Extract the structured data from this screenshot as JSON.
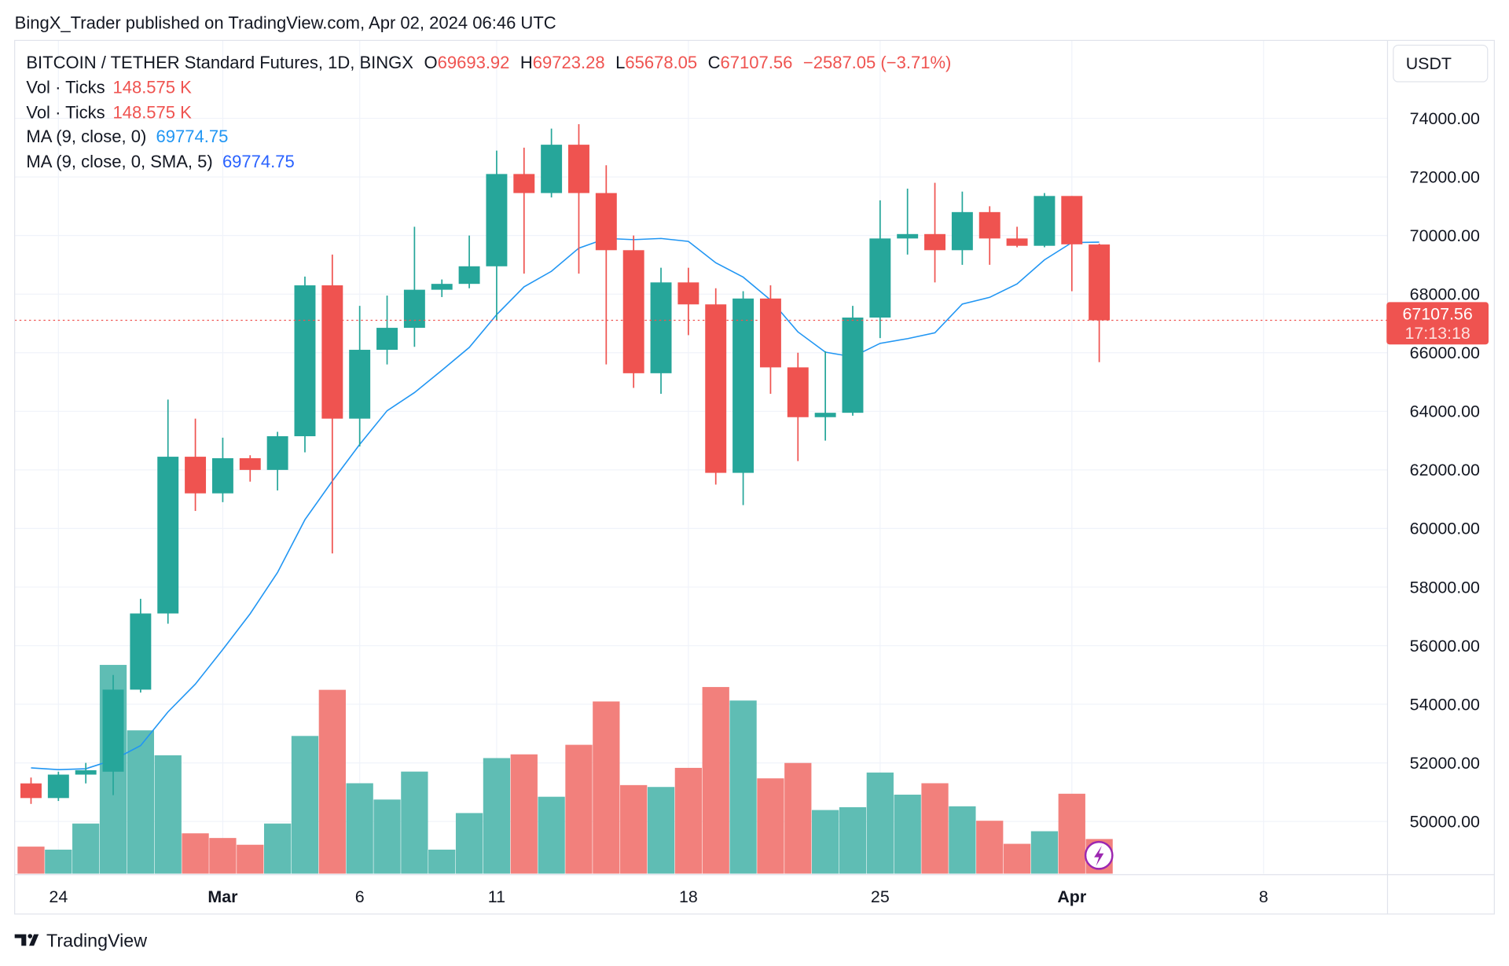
{
  "header": {
    "published": "BingX_Trader published on TradingView.com, Apr 02, 2024 06:46 UTC",
    "brand": "TradingView"
  },
  "legend": {
    "symbol": "BITCOIN / TETHER Standard Futures, 1D, BINGX",
    "o_label": "O",
    "o": "69693.92",
    "h_label": "H",
    "h": "69723.28",
    "l_label": "L",
    "l": "65678.05",
    "c_label": "C",
    "c": "67107.56",
    "change": "−2587.05 (−3.71%)",
    "vol1_label": "Vol · Ticks",
    "vol1": "148.575 K",
    "vol2_label": "Vol · Ticks",
    "vol2": "148.575 K",
    "ma1_label": "MA (9, close, 0)",
    "ma1": "69774.75",
    "ma2_label": "MA (9, close, 0, SMA, 5)",
    "ma2": "69774.75"
  },
  "price_axis": {
    "currency": "USDT",
    "last_price": "67107.56",
    "countdown": "17:13:18"
  },
  "colors": {
    "up": "#26a69a",
    "down": "#ef5350",
    "up_vol": "#5fbdb4",
    "down_vol": "#f2807c",
    "ma": "#2196f3"
  },
  "chart_data": {
    "type": "candlestick",
    "title": "BITCOIN / TETHER Standard Futures, 1D, BINGX",
    "ylim": [
      48500,
      75500
    ],
    "y_ticks": [
      "74000.00",
      "72000.00",
      "70000.00",
      "68000.00",
      "66000.00",
      "64000.00",
      "62000.00",
      "60000.00",
      "58000.00",
      "56000.00",
      "54000.00",
      "52000.00",
      "50000.00"
    ],
    "y_tick_values": [
      74000,
      72000,
      70000,
      68000,
      66000,
      64000,
      62000,
      60000,
      58000,
      56000,
      54000,
      52000,
      50000
    ],
    "x_ticks": [
      {
        "label": "24",
        "day": 1
      },
      {
        "label": "Mar",
        "day": 7
      },
      {
        "label": "6",
        "day": 12
      },
      {
        "label": "11",
        "day": 17
      },
      {
        "label": "18",
        "day": 24
      },
      {
        "label": "25",
        "day": 31
      },
      {
        "label": "Apr",
        "day": 38
      },
      {
        "label": "8",
        "day": 45
      }
    ],
    "x_start": "2024-02-23",
    "candles": [
      [
        51300,
        51500,
        50600,
        50800
      ],
      [
        50800,
        51700,
        50700,
        51600
      ],
      [
        51600,
        52000,
        51300,
        51750
      ],
      [
        51700,
        55000,
        50900,
        54500
      ],
      [
        54500,
        57600,
        54400,
        57100
      ],
      [
        57100,
        64400,
        56750,
        62450
      ],
      [
        62450,
        63750,
        60600,
        61200
      ],
      [
        61200,
        63100,
        60900,
        62400
      ],
      [
        62400,
        62500,
        61600,
        62000
      ],
      [
        62000,
        63300,
        61300,
        63150
      ],
      [
        63150,
        68600,
        62600,
        68300
      ],
      [
        68300,
        69350,
        59150,
        63750
      ],
      [
        63750,
        67600,
        62800,
        66100
      ],
      [
        66100,
        67950,
        65600,
        66850
      ],
      [
        66850,
        70300,
        66200,
        68150
      ],
      [
        68150,
        68500,
        67900,
        68350
      ],
      [
        68350,
        70000,
        68200,
        68950
      ],
      [
        68950,
        72900,
        67100,
        72100
      ],
      [
        72100,
        73000,
        68700,
        71450
      ],
      [
        71450,
        73650,
        71300,
        73100
      ],
      [
        73100,
        73800,
        68700,
        71450
      ],
      [
        71450,
        72400,
        65600,
        69500
      ],
      [
        69500,
        70000,
        64800,
        65300
      ],
      [
        65300,
        68900,
        64600,
        68400
      ],
      [
        68400,
        68900,
        66600,
        67650
      ],
      [
        67650,
        68200,
        61500,
        61900
      ],
      [
        61900,
        68100,
        60800,
        67850
      ],
      [
        67850,
        68300,
        64600,
        65500
      ],
      [
        65500,
        66000,
        62300,
        63800
      ],
      [
        63800,
        66050,
        63000,
        63950
      ],
      [
        63950,
        67600,
        63850,
        67200
      ],
      [
        67200,
        71200,
        66500,
        69900
      ],
      [
        69900,
        71600,
        69350,
        70050
      ],
      [
        70050,
        71800,
        68400,
        69500
      ],
      [
        69500,
        71500,
        69000,
        70800
      ],
      [
        70800,
        71000,
        69000,
        69900
      ],
      [
        69900,
        70300,
        69600,
        69650
      ],
      [
        69650,
        71450,
        69600,
        71350
      ],
      [
        71350,
        71350,
        68100,
        69700
      ],
      [
        69693.92,
        69723.28,
        65678.05,
        67107.56
      ]
    ],
    "volume_k": [
      116,
      103,
      215,
      896,
      615,
      508,
      173,
      153,
      124,
      215,
      591,
      789,
      388,
      318,
      438,
      103,
      260,
      496,
      512,
      330,
      553,
      739,
      380,
      372,
      454,
      801,
      743,
      409,
      475,
      273,
      285,
      434,
      339,
      388,
      289,
      227,
      128,
      182,
      343,
      148.575
    ],
    "volume_up": [
      0,
      1,
      1,
      1,
      1,
      1,
      0,
      0,
      0,
      1,
      1,
      0,
      1,
      1,
      1,
      1,
      1,
      1,
      0,
      1,
      0,
      0,
      0,
      1,
      0,
      0,
      1,
      0,
      0,
      1,
      1,
      1,
      1,
      0,
      1,
      0,
      0,
      1,
      0,
      0
    ],
    "ma9": [
      51830,
      51770,
      51800,
      52100,
      52590,
      53740,
      54690,
      55870,
      57090,
      58500,
      60300,
      61620,
      62870,
      64020,
      64640,
      65400,
      66180,
      67300,
      68250,
      68780,
      69570,
      69900,
      69860,
      69900,
      69800,
      69070,
      68580,
      67800,
      66710,
      66020,
      65860,
      66320,
      66480,
      66680,
      67660,
      67890,
      68350,
      69170,
      69760,
      69774.75
    ]
  }
}
